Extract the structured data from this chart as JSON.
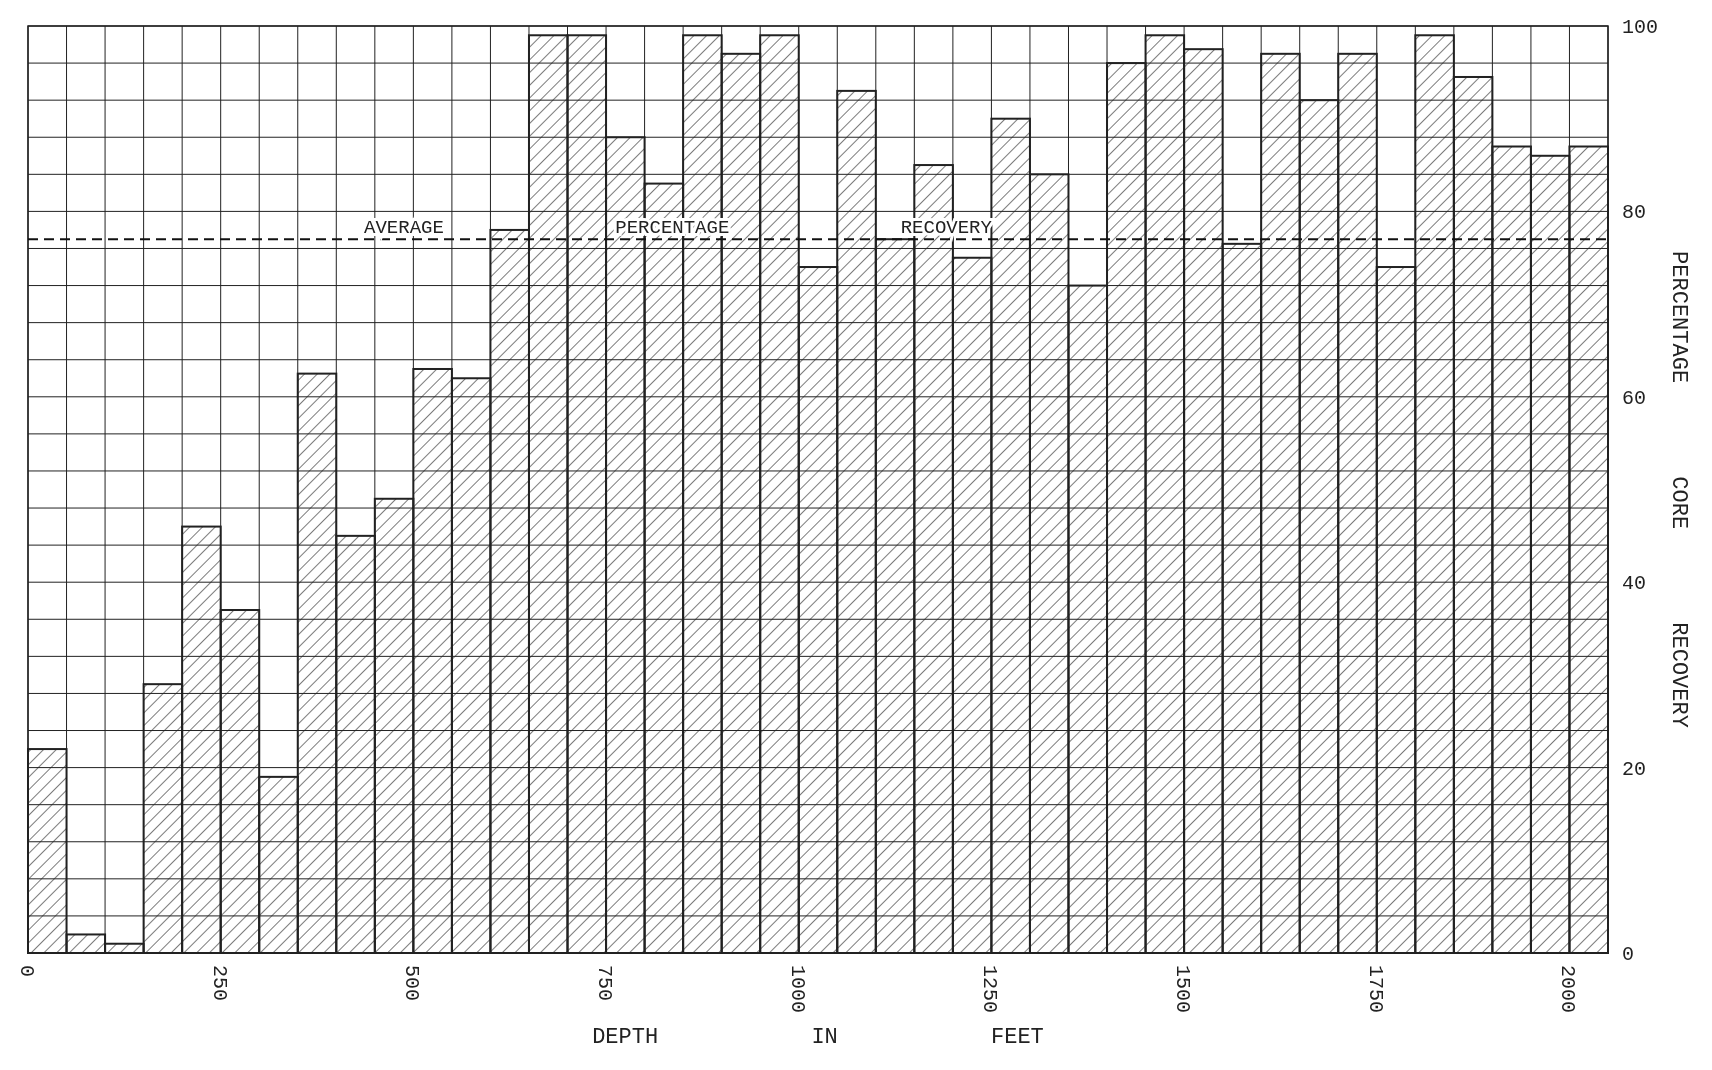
{
  "chart_data": {
    "type": "histogram",
    "xlabel": "DEPTH IN FEET",
    "ylabel": "PERCENTAGE CORE RECOVERY",
    "bins": [
      0,
      50,
      100,
      150,
      200,
      250,
      300,
      350,
      400,
      450,
      500,
      550,
      600,
      650,
      700,
      750,
      800,
      850,
      900,
      950,
      1000,
      1050,
      1100,
      1150,
      1200,
      1250,
      1300,
      1350,
      1400,
      1450,
      1500,
      1550,
      1600,
      1650,
      1700,
      1750,
      1800,
      1850,
      1900,
      1950,
      2000,
      2050
    ],
    "values": [
      22,
      2,
      1,
      29,
      46,
      37,
      19,
      62.5,
      45,
      49,
      63,
      62,
      78,
      99,
      99,
      88,
      83,
      99,
      97,
      99,
      74,
      93,
      77,
      85,
      75,
      90,
      84,
      72,
      96,
      99,
      97.5,
      76.5,
      97,
      92,
      97,
      74,
      99,
      94.5,
      87,
      86,
      87
    ],
    "color": "#222222",
    "xlim": [
      0,
      2050
    ],
    "xticks": [
      0,
      {
        "value": 50,
        "label": null
      },
      {
        "value": 100,
        "label": null
      },
      {
        "value": 150,
        "label": null
      },
      {
        "value": 200,
        "label": null
      },
      250,
      {
        "value": 300,
        "label": null
      },
      {
        "value": 350,
        "label": null
      },
      {
        "value": 400,
        "label": null
      },
      {
        "value": 450,
        "label": null
      },
      500,
      {
        "value": 550,
        "label": null
      },
      {
        "value": 600,
        "label": null
      },
      {
        "value": 650,
        "label": null
      },
      {
        "value": 700,
        "label": null
      },
      750,
      {
        "value": 800,
        "label": null
      },
      {
        "value": 850,
        "label": null
      },
      {
        "value": 900,
        "label": null
      },
      {
        "value": 950,
        "label": null
      },
      1000,
      {
        "value": 1050,
        "label": null
      },
      {
        "value": 1100,
        "label": null
      },
      {
        "value": 1150,
        "label": null
      },
      {
        "value": 1200,
        "label": null
      },
      1250,
      {
        "value": 1300,
        "label": null
      },
      {
        "value": 1350,
        "label": null
      },
      {
        "value": 1400,
        "label": null
      },
      {
        "value": 1450,
        "label": null
      },
      1500,
      {
        "value": 1550,
        "label": null
      },
      {
        "value": 1600,
        "label": null
      },
      {
        "value": 1650,
        "label": null
      },
      {
        "value": 1700,
        "label": null
      },
      1750,
      {
        "value": 1800,
        "label": null
      },
      {
        "value": 1850,
        "label": null
      },
      {
        "value": 1900,
        "label": null
      },
      {
        "value": 1950,
        "label": null
      },
      2000,
      {
        "value": 2050,
        "label": null
      }
    ],
    "ylim": [
      0,
      100
    ],
    "yticks": [
      0,
      {
        "value": 4,
        "label": null
      },
      {
        "value": 8,
        "label": null
      },
      {
        "value": 12,
        "label": null
      },
      {
        "value": 16,
        "label": null
      },
      20,
      {
        "value": 24,
        "label": null
      },
      {
        "value": 28,
        "label": null
      },
      {
        "value": 32,
        "label": null
      },
      {
        "value": 36,
        "label": null
      },
      40,
      {
        "value": 44,
        "label": null
      },
      {
        "value": 48,
        "label": null
      },
      {
        "value": 52,
        "label": null
      },
      {
        "value": 56,
        "label": null
      },
      60,
      {
        "value": 64,
        "label": null
      },
      {
        "value": 68,
        "label": null
      },
      {
        "value": 72,
        "label": null
      },
      {
        "value": 76,
        "label": null
      },
      80,
      {
        "value": 84,
        "label": null
      },
      {
        "value": 88,
        "label": null
      },
      {
        "value": 92,
        "label": null
      },
      {
        "value": 96,
        "label": null
      },
      100
    ],
    "grid": true,
    "ref_lines": [
      {
        "axis": "y",
        "value": 77,
        "label": "AVERAGE PERCENTAGE RECOVERY",
        "line_style": "dashed"
      }
    ]
  }
}
